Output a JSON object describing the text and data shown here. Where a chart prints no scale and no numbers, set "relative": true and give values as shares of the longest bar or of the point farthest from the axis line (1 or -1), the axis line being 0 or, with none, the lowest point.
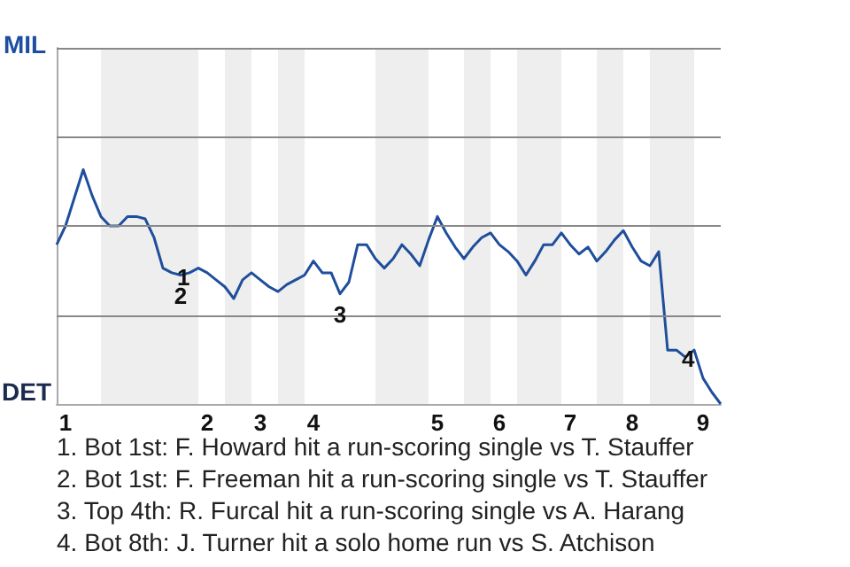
{
  "chart_data": {
    "type": "line",
    "relative": true,
    "categories": [
      null,
      "1",
      null,
      null,
      null,
      null,
      null,
      null,
      null,
      null,
      null,
      null,
      null,
      null,
      null,
      null,
      null,
      "2",
      null,
      null,
      null,
      null,
      null,
      "3",
      null,
      null,
      null,
      null,
      null,
      "4",
      null,
      null,
      null,
      null,
      null,
      null,
      null,
      null,
      null,
      null,
      null,
      null,
      null,
      "5",
      null,
      null,
      null,
      null,
      null,
      null,
      "6",
      null,
      null,
      null,
      null,
      null,
      null,
      null,
      "7",
      null,
      null,
      null,
      null,
      null,
      null,
      "8",
      null,
      null,
      null,
      null,
      null,
      null,
      null,
      "9",
      null,
      null
    ],
    "series": [
      {
        "color": "#1f4e9c",
        "values": [
          0.68,
          0.76,
          0.88,
          1,
          0.89,
          0.8,
          0.76,
          0.76,
          0.8,
          0.8,
          0.79,
          0.71,
          0.58,
          0.56,
          0.55,
          0.56,
          0.58,
          0.56,
          0.53,
          0.5,
          0.45,
          0.53,
          0.56,
          0.53,
          0.5,
          0.48,
          0.51,
          0.53,
          0.55,
          0.61,
          0.56,
          0.56,
          0.47,
          0.52,
          0.68,
          0.68,
          0.62,
          0.58,
          0.62,
          0.68,
          0.64,
          0.59,
          0.7,
          0.8,
          0.73,
          0.67,
          0.62,
          0.67,
          0.71,
          0.73,
          0.68,
          0.65,
          0.61,
          0.55,
          0.61,
          0.68,
          0.68,
          0.73,
          0.68,
          0.64,
          0.67,
          0.61,
          0.65,
          0.7,
          0.74,
          0.67,
          0.61,
          0.59,
          0.65,
          0.23,
          0.23,
          0.2,
          0.23,
          0.11,
          0.05,
          0
        ]
      }
    ],
    "marker": "none",
    "line_style": "solid",
    "ref_lines": [
      {
        "axis": "y",
        "value": 0.38,
        "color": "#888888"
      },
      {
        "axis": "y",
        "value": 0.76,
        "color": "#888888"
      },
      {
        "axis": "y",
        "value": 1.14,
        "color": "#888888"
      },
      {
        "axis": "y",
        "value": 1.52,
        "color": "#888888"
      }
    ],
    "annotations": [
      "MIL",
      "DET",
      {
        "text": "1",
        "y": 0.58
      },
      {
        "text": "2",
        "y": 0.55
      },
      {
        "text": "3",
        "y": 0.47
      },
      {
        "text": "4",
        "y": 0.23
      },
      "1. Bot 1st: F. Howard hit a run-scoring single vs T. Stauffer",
      "2. Bot 1st: F. Freeman hit a run-scoring single vs T. Stauffer",
      "3. Top 4th: R. Furcal hit a run-scoring single vs A. Harang",
      "4. Bot 8th: J. Turner hit a solo home run vs S. Atchison"
    ]
  }
}
